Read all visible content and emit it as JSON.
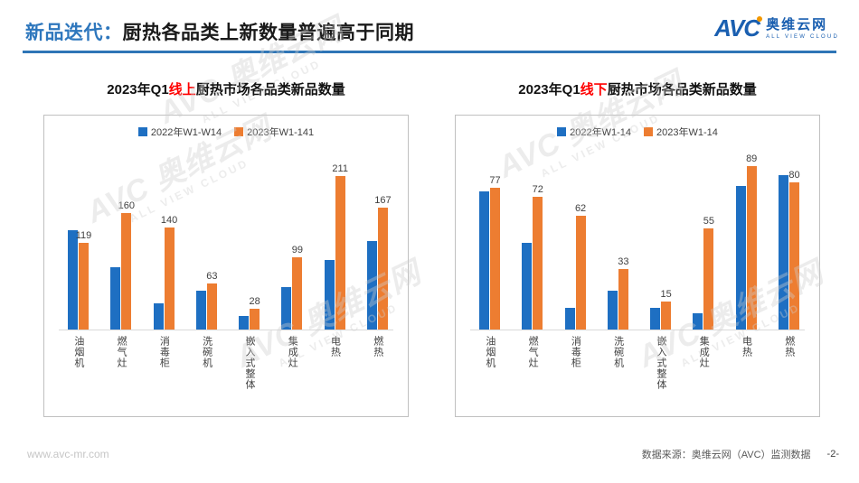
{
  "header": {
    "title_prefix": "新品迭代：",
    "title_main": "厨热各品类上新数量普遍高于同期",
    "logo": {
      "text": "AVC",
      "name_cn": "奥维云网",
      "name_en": "ALL VIEW CLOUD"
    }
  },
  "colors": {
    "title_blue": "#2E77BD",
    "divider_blue": "#2E75B6",
    "bar_blue": "#1E6FC2",
    "bar_orange": "#ED7D31",
    "accent_red": "#FF0000"
  },
  "watermark": {
    "line1": "AVC 奥维云网",
    "line2": "ALL VIEW CLOUD"
  },
  "chart_data": [
    {
      "type": "bar",
      "title_pre": "2023年Q1",
      "title_red": "线上",
      "title_post": "厨热市场各品类新品数量",
      "categories": [
        "油烟机",
        "燃气灶",
        "消毒柜",
        "洗碗机",
        "嵌入式整体",
        "集成灶",
        "电热",
        "燃热"
      ],
      "series": [
        {
          "name": "2022年W1-W14",
          "color": "#1E6FC2",
          "labels_shown": false,
          "values": [
            136,
            86,
            36,
            53,
            19,
            58,
            95,
            121
          ]
        },
        {
          "name": "2023年W1-141",
          "color": "#ED7D31",
          "labels_shown": true,
          "values": [
            119,
            160,
            140,
            63,
            28,
            99,
            211,
            167
          ]
        }
      ],
      "ylim": [
        0,
        260
      ],
      "legend_position": "top",
      "grid": false
    },
    {
      "type": "bar",
      "title_pre": "2023年Q1",
      "title_red": "线下",
      "title_post": "厨热市场各品类新品数量",
      "categories": [
        "油烟机",
        "燃气灶",
        "消毒柜",
        "洗碗机",
        "嵌入式整体",
        "集成灶",
        "电热",
        "燃热"
      ],
      "series": [
        {
          "name": "2022年W1-14",
          "color": "#1E6FC2",
          "labels_shown": false,
          "values": [
            75,
            47,
            12,
            21,
            12,
            9,
            78,
            84
          ]
        },
        {
          "name": "2023年W1-14",
          "color": "#ED7D31",
          "labels_shown": true,
          "values": [
            77,
            72,
            62,
            33,
            15,
            55,
            89,
            80
          ]
        }
      ],
      "ylim": [
        0,
        103
      ],
      "legend_position": "top",
      "grid": false
    }
  ],
  "footer": {
    "website": "www.avc-mr.com",
    "source": "数据来源：奥维云网（AVC）监测数据",
    "page": "-2-"
  }
}
